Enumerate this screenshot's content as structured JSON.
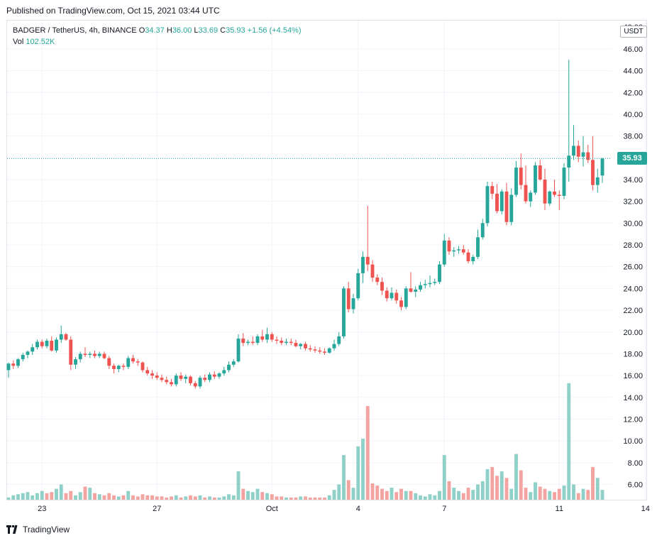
{
  "published": "Published on TradingView.com, Oct 15, 2021 03:44 UTC",
  "legend": {
    "symbol": "BADGER / TetherUS, 4h, BINANCE",
    "o_label": "O",
    "o": "34.37",
    "h_label": "H",
    "h": "36.00",
    "l_label": "L",
    "l": "33.69",
    "c_label": "C",
    "c": "35.93",
    "change": "+1.56 (+4.54%)",
    "vol_label": "Vol",
    "vol": "102.52K"
  },
  "axis": {
    "currency": "USDT",
    "last_price": "35.93",
    "top_partial": "48.00"
  },
  "footer": {
    "brand": "TradingView"
  },
  "colors": {
    "up": "#26a69a",
    "down": "#ef5350",
    "vol_up": "#8fd0c8",
    "vol_down": "#f3a3a0"
  },
  "chart_data": {
    "type": "candlestick",
    "title": "BADGER / TetherUS, 4h, BINANCE",
    "y_ticks": [
      6,
      8,
      10,
      12,
      14,
      16,
      18,
      20,
      22,
      24,
      26,
      28,
      30,
      32,
      34,
      36,
      38,
      40,
      42,
      44,
      46
    ],
    "y_tick_labels": [
      "6.00",
      "8.00",
      "10.00",
      "12.00",
      "14.00",
      "16.00",
      "18.00",
      "20.00",
      "22.00",
      "24.00",
      "26.00",
      "28.00",
      "30.00",
      "32.00",
      "34.00",
      "36.00",
      "38.00",
      "40.00",
      "42.00",
      "44.00",
      "46.00"
    ],
    "ylim": [
      4.6,
      48.6
    ],
    "x_ticks": [
      {
        "label": "23",
        "index": 7
      },
      {
        "label": "27",
        "index": 31
      },
      {
        "label": "Oct",
        "index": 55
      },
      {
        "label": "4",
        "index": 73
      },
      {
        "label": "7",
        "index": 91
      },
      {
        "label": "11",
        "index": 115
      },
      {
        "label": "14",
        "index": 133
      }
    ],
    "candles": [
      [
        16.5,
        17.2,
        15.8,
        17.1
      ],
      [
        17.1,
        17.4,
        16.6,
        16.9
      ],
      [
        16.9,
        17.6,
        16.7,
        17.5
      ],
      [
        17.5,
        18.1,
        17.3,
        17.9
      ],
      [
        17.9,
        18.3,
        17.6,
        18.2
      ],
      [
        18.2,
        18.9,
        17.9,
        18.6
      ],
      [
        18.6,
        19.3,
        18.4,
        19.1
      ],
      [
        19.1,
        19.3,
        18.5,
        18.7
      ],
      [
        18.7,
        19.4,
        18.5,
        19.2
      ],
      [
        19.2,
        19.6,
        18.2,
        18.3
      ],
      [
        18.3,
        19.5,
        18.1,
        19.3
      ],
      [
        19.3,
        20.6,
        19.0,
        19.8
      ],
      [
        19.8,
        19.9,
        19.2,
        19.3
      ],
      [
        19.3,
        19.6,
        16.5,
        17.0
      ],
      [
        17.0,
        17.7,
        16.6,
        17.5
      ],
      [
        17.5,
        18.2,
        17.2,
        18.0
      ],
      [
        18.0,
        18.6,
        17.7,
        17.9
      ],
      [
        17.9,
        18.2,
        17.6,
        18.0
      ],
      [
        18.0,
        18.3,
        17.6,
        17.8
      ],
      [
        17.8,
        18.2,
        17.6,
        18.0
      ],
      [
        18.0,
        18.2,
        17.5,
        17.6
      ],
      [
        17.6,
        17.8,
        16.6,
        16.9
      ],
      [
        16.9,
        17.1,
        16.2,
        16.6
      ],
      [
        16.6,
        17.0,
        16.3,
        16.9
      ],
      [
        16.9,
        17.1,
        16.5,
        16.8
      ],
      [
        16.8,
        17.8,
        16.6,
        17.6
      ],
      [
        17.6,
        17.9,
        17.1,
        17.3
      ],
      [
        17.3,
        17.5,
        16.9,
        17.2
      ],
      [
        17.2,
        17.3,
        16.3,
        16.5
      ],
      [
        16.5,
        16.8,
        16.0,
        16.2
      ],
      [
        16.2,
        16.5,
        15.7,
        16.0
      ],
      [
        16.0,
        16.3,
        15.6,
        15.8
      ],
      [
        15.8,
        16.1,
        15.4,
        15.6
      ],
      [
        15.6,
        15.9,
        15.2,
        15.4
      ],
      [
        15.4,
        15.7,
        15.0,
        15.2
      ],
      [
        15.2,
        16.2,
        15.0,
        16.0
      ],
      [
        16.0,
        16.3,
        15.5,
        15.7
      ],
      [
        15.7,
        16.1,
        15.3,
        15.9
      ],
      [
        15.9,
        16.0,
        15.1,
        15.3
      ],
      [
        15.3,
        15.5,
        14.8,
        15.0
      ],
      [
        15.0,
        16.0,
        14.8,
        15.8
      ],
      [
        15.8,
        16.1,
        15.4,
        15.6
      ],
      [
        15.6,
        16.3,
        15.4,
        16.1
      ],
      [
        16.1,
        16.4,
        15.7,
        15.9
      ],
      [
        15.9,
        16.3,
        15.7,
        16.2
      ],
      [
        16.2,
        16.8,
        16.0,
        16.5
      ],
      [
        16.5,
        17.3,
        16.3,
        17.0
      ],
      [
        17.0,
        17.5,
        16.8,
        17.3
      ],
      [
        17.3,
        19.8,
        17.2,
        19.4
      ],
      [
        19.4,
        19.9,
        18.7,
        19.0
      ],
      [
        19.0,
        19.3,
        18.8,
        19.1
      ],
      [
        19.1,
        19.6,
        18.8,
        19.0
      ],
      [
        19.0,
        19.8,
        18.8,
        19.6
      ],
      [
        19.6,
        20.2,
        19.1,
        19.3
      ],
      [
        19.3,
        20.4,
        19.0,
        19.8
      ],
      [
        19.8,
        20.0,
        19.1,
        19.3
      ],
      [
        19.3,
        19.6,
        18.9,
        19.2
      ],
      [
        19.2,
        19.5,
        18.8,
        19.0
      ],
      [
        19.0,
        19.4,
        18.8,
        19.1
      ],
      [
        19.1,
        19.4,
        18.8,
        19.0
      ],
      [
        19.0,
        19.3,
        18.6,
        18.7
      ],
      [
        18.7,
        19.0,
        18.4,
        18.9
      ],
      [
        18.9,
        19.1,
        18.3,
        18.5
      ],
      [
        18.5,
        18.8,
        18.2,
        18.4
      ],
      [
        18.4,
        18.7,
        18.1,
        18.3
      ],
      [
        18.3,
        18.6,
        18.0,
        18.2
      ],
      [
        18.2,
        18.5,
        17.9,
        18.1
      ],
      [
        18.1,
        18.6,
        18.0,
        18.5
      ],
      [
        18.5,
        19.3,
        18.3,
        18.9
      ],
      [
        18.9,
        20.0,
        18.7,
        19.6
      ],
      [
        19.6,
        24.2,
        19.4,
        24.0
      ],
      [
        24.0,
        24.6,
        21.8,
        22.1
      ],
      [
        22.1,
        23.5,
        21.7,
        23.1
      ],
      [
        23.1,
        25.8,
        22.9,
        25.4
      ],
      [
        25.4,
        27.4,
        24.5,
        26.9
      ],
      [
        26.9,
        31.6,
        25.6,
        26.2
      ],
      [
        26.2,
        26.6,
        24.6,
        25.0
      ],
      [
        25.0,
        25.3,
        24.3,
        24.6
      ],
      [
        24.6,
        25.0,
        23.4,
        23.8
      ],
      [
        23.8,
        24.1,
        22.8,
        23.1
      ],
      [
        23.1,
        24.1,
        22.9,
        23.6
      ],
      [
        23.6,
        23.9,
        22.6,
        22.9
      ],
      [
        22.9,
        23.2,
        22.0,
        22.3
      ],
      [
        22.3,
        24.2,
        22.1,
        24.0
      ],
      [
        24.0,
        25.5,
        23.6,
        23.7
      ],
      [
        23.7,
        24.2,
        23.2,
        23.9
      ],
      [
        23.9,
        24.6,
        23.7,
        24.3
      ],
      [
        24.3,
        24.8,
        24.0,
        24.4
      ],
      [
        24.4,
        25.2,
        24.1,
        24.5
      ],
      [
        24.5,
        24.9,
        24.3,
        24.6
      ],
      [
        24.6,
        26.5,
        24.4,
        26.2
      ],
      [
        26.2,
        29.0,
        26.0,
        28.4
      ],
      [
        28.4,
        28.7,
        27.1,
        27.4
      ],
      [
        27.4,
        27.8,
        26.9,
        27.5
      ],
      [
        27.5,
        27.9,
        27.2,
        27.6
      ],
      [
        27.6,
        28.0,
        27.1,
        27.3
      ],
      [
        27.3,
        27.6,
        26.3,
        26.5
      ],
      [
        26.5,
        27.1,
        26.2,
        26.9
      ],
      [
        26.9,
        29.4,
        26.7,
        28.7
      ],
      [
        28.7,
        30.4,
        28.5,
        30.0
      ],
      [
        30.0,
        33.8,
        29.7,
        33.4
      ],
      [
        33.4,
        33.8,
        32.2,
        32.7
      ],
      [
        32.7,
        33.6,
        30.9,
        31.1
      ],
      [
        31.1,
        33.1,
        30.8,
        32.9
      ],
      [
        32.9,
        33.7,
        29.8,
        30.1
      ],
      [
        30.1,
        33.2,
        29.8,
        32.6
      ],
      [
        32.6,
        35.7,
        32.4,
        35.1
      ],
      [
        35.1,
        36.4,
        33.1,
        33.5
      ],
      [
        33.5,
        35.3,
        31.8,
        32.0
      ],
      [
        32.0,
        33.0,
        31.5,
        32.8
      ],
      [
        32.8,
        35.6,
        32.6,
        35.3
      ],
      [
        35.3,
        35.8,
        33.9,
        34.0
      ],
      [
        34.0,
        35.0,
        31.2,
        31.8
      ],
      [
        31.8,
        33.0,
        31.6,
        32.9
      ],
      [
        32.9,
        34.0,
        32.4,
        32.6
      ],
      [
        32.6,
        33.0,
        31.2,
        32.5
      ],
      [
        32.5,
        35.5,
        32.2,
        35.1
      ],
      [
        35.1,
        45.0,
        33.8,
        36.2
      ],
      [
        36.2,
        39.0,
        35.8,
        37.1
      ],
      [
        37.1,
        37.6,
        35.6,
        36.1
      ],
      [
        36.1,
        38.0,
        35.2,
        36.5
      ],
      [
        36.5,
        37.2,
        35.5,
        35.8
      ],
      [
        35.8,
        38.0,
        33.0,
        33.5
      ],
      [
        33.5,
        35.0,
        32.8,
        34.2
      ],
      [
        34.37,
        36.0,
        33.69,
        35.93
      ]
    ],
    "volume_scale_note": "volume bars share the price axis visually",
    "volumes": [
      [
        4.8,
        1
      ],
      [
        5.0,
        1
      ],
      [
        5.1,
        1
      ],
      [
        5.2,
        1
      ],
      [
        5.3,
        1
      ],
      [
        5.0,
        1
      ],
      [
        5.2,
        1
      ],
      [
        5.4,
        1
      ],
      [
        5.2,
        0
      ],
      [
        5.3,
        0
      ],
      [
        5.6,
        1
      ],
      [
        6.0,
        1
      ],
      [
        5.2,
        0
      ],
      [
        5.4,
        0
      ],
      [
        5.0,
        1
      ],
      [
        5.3,
        1
      ],
      [
        5.8,
        0
      ],
      [
        5.7,
        1
      ],
      [
        5.2,
        0
      ],
      [
        5.1,
        1
      ],
      [
        5.0,
        0
      ],
      [
        5.2,
        0
      ],
      [
        5.0,
        0
      ],
      [
        4.9,
        1
      ],
      [
        5.0,
        0
      ],
      [
        5.4,
        1
      ],
      [
        5.0,
        0
      ],
      [
        4.9,
        0
      ],
      [
        5.1,
        0
      ],
      [
        5.0,
        0
      ],
      [
        5.0,
        0
      ],
      [
        4.9,
        0
      ],
      [
        4.9,
        0
      ],
      [
        4.8,
        0
      ],
      [
        4.9,
        0
      ],
      [
        5.0,
        1
      ],
      [
        4.8,
        0
      ],
      [
        4.9,
        1
      ],
      [
        5.0,
        0
      ],
      [
        4.9,
        0
      ],
      [
        5.0,
        1
      ],
      [
        4.8,
        0
      ],
      [
        4.9,
        1
      ],
      [
        4.8,
        0
      ],
      [
        4.8,
        1
      ],
      [
        4.9,
        1
      ],
      [
        5.1,
        1
      ],
      [
        5.0,
        1
      ],
      [
        7.2,
        1
      ],
      [
        5.6,
        0
      ],
      [
        5.4,
        1
      ],
      [
        5.3,
        1
      ],
      [
        5.6,
        1
      ],
      [
        5.3,
        0
      ],
      [
        5.2,
        1
      ],
      [
        5.1,
        0
      ],
      [
        4.9,
        0
      ],
      [
        4.9,
        0
      ],
      [
        4.8,
        1
      ],
      [
        4.8,
        0
      ],
      [
        4.8,
        0
      ],
      [
        4.9,
        1
      ],
      [
        4.9,
        0
      ],
      [
        4.8,
        0
      ],
      [
        4.8,
        0
      ],
      [
        4.8,
        0
      ],
      [
        4.8,
        0
      ],
      [
        5.0,
        1
      ],
      [
        5.5,
        1
      ],
      [
        6.0,
        1
      ],
      [
        8.7,
        1
      ],
      [
        6.4,
        0
      ],
      [
        5.7,
        1
      ],
      [
        9.5,
        1
      ],
      [
        10.2,
        1
      ],
      [
        13.2,
        0
      ],
      [
        6.1,
        0
      ],
      [
        5.9,
        0
      ],
      [
        5.6,
        0
      ],
      [
        5.4,
        0
      ],
      [
        5.7,
        1
      ],
      [
        5.3,
        0
      ],
      [
        5.6,
        0
      ],
      [
        5.4,
        1
      ],
      [
        5.4,
        0
      ],
      [
        5.2,
        1
      ],
      [
        5.0,
        1
      ],
      [
        4.9,
        1
      ],
      [
        5.1,
        1
      ],
      [
        5.0,
        1
      ],
      [
        5.4,
        1
      ],
      [
        8.7,
        1
      ],
      [
        6.3,
        0
      ],
      [
        5.7,
        1
      ],
      [
        5.4,
        1
      ],
      [
        5.2,
        0
      ],
      [
        5.7,
        0
      ],
      [
        5.5,
        1
      ],
      [
        6.0,
        1
      ],
      [
        6.3,
        1
      ],
      [
        7.4,
        1
      ],
      [
        7.6,
        0
      ],
      [
        6.8,
        0
      ],
      [
        7.2,
        1
      ],
      [
        6.6,
        0
      ],
      [
        5.6,
        1
      ],
      [
        8.8,
        1
      ],
      [
        7.3,
        0
      ],
      [
        5.7,
        0
      ],
      [
        5.3,
        1
      ],
      [
        6.2,
        1
      ],
      [
        5.8,
        0
      ],
      [
        5.6,
        0
      ],
      [
        5.4,
        1
      ],
      [
        5.3,
        0
      ],
      [
        5.6,
        0
      ],
      [
        5.9,
        1
      ],
      [
        15.3,
        1
      ],
      [
        6.0,
        1
      ],
      [
        5.2,
        0
      ],
      [
        5.6,
        1
      ],
      [
        5.5,
        0
      ],
      [
        7.6,
        0
      ],
      [
        6.6,
        1
      ],
      [
        5.5,
        1
      ]
    ]
  }
}
